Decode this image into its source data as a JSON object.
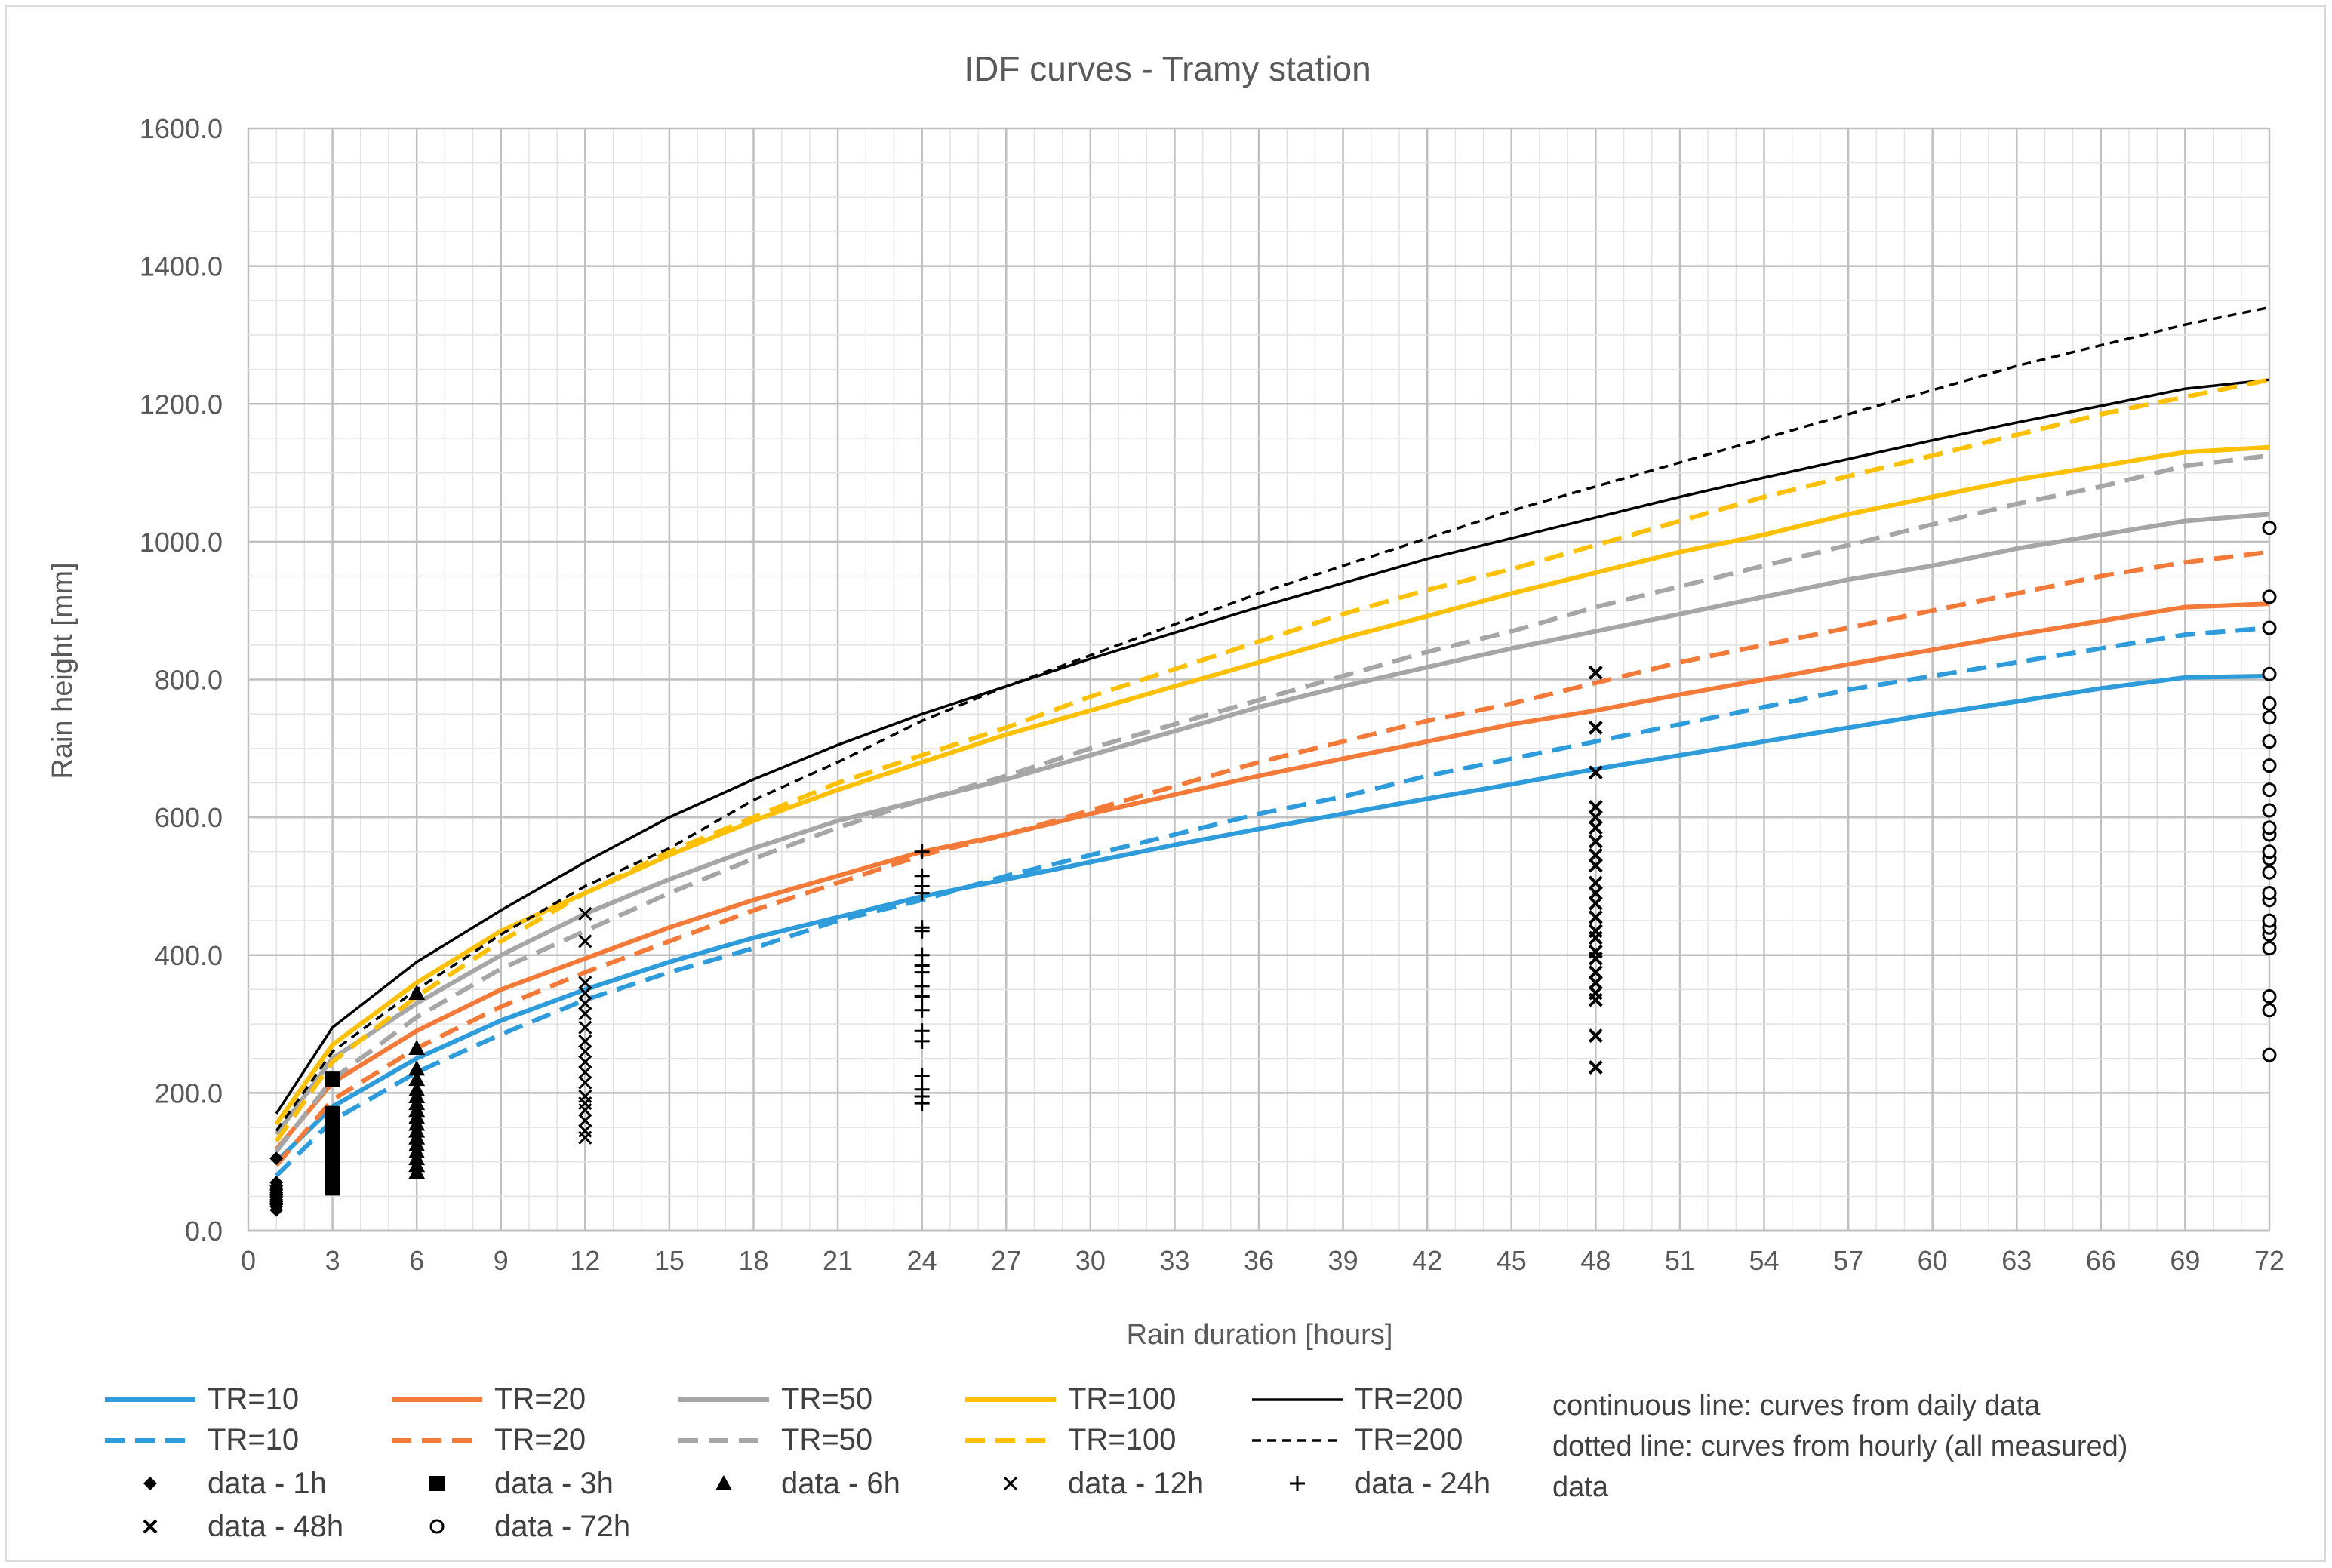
{
  "chart_data": {
    "type": "line",
    "title": "IDF curves - Tramy station",
    "xlabel": "Rain duration [hours]",
    "ylabel": "Rain height [mm]",
    "xlim": [
      0,
      72
    ],
    "ylim": [
      0,
      1600
    ],
    "x_ticks": [
      0,
      3,
      6,
      9,
      12,
      15,
      18,
      21,
      24,
      27,
      30,
      33,
      36,
      39,
      42,
      45,
      48,
      51,
      54,
      57,
      60,
      63,
      66,
      69,
      72
    ],
    "y_ticks": [
      0,
      200,
      400,
      600,
      800,
      1000,
      1200,
      1400,
      1600
    ],
    "y_tick_labels": [
      "0.0",
      "200.0",
      "400.0",
      "600.0",
      "800.0",
      "1000.0",
      "1200.0",
      "1400.0",
      "1600.0"
    ],
    "grid": true,
    "curve_x": [
      1,
      3,
      6,
      9,
      12,
      15,
      18,
      21,
      24,
      27,
      30,
      33,
      36,
      39,
      42,
      45,
      48,
      51,
      54,
      57,
      60,
      63,
      66,
      69,
      72
    ],
    "series": [
      {
        "name": "TR=10",
        "style": "solid",
        "color": "#2E9BDA",
        "values": [
          100,
          180,
          250,
          305,
          350,
          390,
          425,
          455,
          485,
          510,
          535,
          560,
          583,
          605,
          627,
          648,
          670,
          690,
          710,
          730,
          750,
          768,
          787,
          803,
          805
        ]
      },
      {
        "name": "TR=20",
        "style": "solid",
        "color": "#F47A3A",
        "values": [
          118,
          215,
          290,
          350,
          395,
          440,
          480,
          515,
          550,
          575,
          605,
          633,
          660,
          685,
          710,
          735,
          755,
          778,
          800,
          822,
          843,
          865,
          885,
          905,
          910
        ]
      },
      {
        "name": "TR=50",
        "style": "solid",
        "color": "#A6A6A6",
        "values": [
          140,
          250,
          330,
          400,
          460,
          510,
          555,
          595,
          625,
          655,
          690,
          725,
          760,
          790,
          818,
          845,
          870,
          895,
          920,
          945,
          965,
          990,
          1010,
          1030,
          1040
        ]
      },
      {
        "name": "TR=100",
        "style": "solid",
        "color": "#FFC000",
        "values": [
          155,
          270,
          360,
          435,
          490,
          545,
          595,
          640,
          680,
          720,
          755,
          790,
          825,
          860,
          892,
          925,
          955,
          985,
          1010,
          1040,
          1065,
          1090,
          1110,
          1130,
          1137
        ]
      },
      {
        "name": "TR=200",
        "style": "solid",
        "color": "#000000",
        "values": [
          170,
          295,
          390,
          465,
          535,
          600,
          655,
          705,
          750,
          790,
          830,
          868,
          905,
          940,
          975,
          1005,
          1035,
          1065,
          1093,
          1120,
          1147,
          1173,
          1197,
          1222,
          1235
        ]
      },
      {
        "name": "TR=10",
        "style": "dashed",
        "color": "#2E9BDA",
        "values": [
          80,
          160,
          230,
          285,
          335,
          375,
          410,
          450,
          480,
          515,
          545,
          575,
          605,
          630,
          660,
          685,
          710,
          735,
          760,
          785,
          805,
          825,
          845,
          865,
          875
        ]
      },
      {
        "name": "TR=20",
        "style": "dashed",
        "color": "#F47A3A",
        "values": [
          95,
          190,
          265,
          325,
          375,
          420,
          465,
          505,
          545,
          575,
          610,
          645,
          680,
          710,
          740,
          765,
          795,
          825,
          850,
          875,
          900,
          925,
          950,
          970,
          985
        ]
      },
      {
        "name": "TR=50",
        "style": "dashed",
        "color": "#A6A6A6",
        "values": [
          115,
          220,
          310,
          380,
          435,
          490,
          540,
          585,
          625,
          660,
          700,
          735,
          770,
          805,
          840,
          870,
          905,
          935,
          965,
          995,
          1025,
          1055,
          1080,
          1110,
          1125
        ]
      },
      {
        "name": "TR=100",
        "style": "dashed",
        "color": "#FFC000",
        "values": [
          130,
          245,
          340,
          420,
          490,
          550,
          600,
          650,
          690,
          730,
          775,
          815,
          855,
          895,
          930,
          960,
          995,
          1030,
          1065,
          1095,
          1125,
          1155,
          1185,
          1210,
          1235
        ]
      },
      {
        "name": "TR=200",
        "style": "dashed",
        "color": "#000000",
        "values": [
          145,
          260,
          350,
          430,
          500,
          555,
          625,
          680,
          740,
          790,
          835,
          880,
          925,
          965,
          1005,
          1045,
          1080,
          1115,
          1150,
          1185,
          1220,
          1255,
          1285,
          1315,
          1340
        ]
      }
    ],
    "scatter_series": [
      {
        "name": "data - 1h",
        "marker": "diamond",
        "x": 1,
        "values": [
          30,
          35,
          38,
          40,
          42,
          45,
          48,
          50,
          52,
          55,
          58,
          60,
          62,
          65,
          70,
          105
        ]
      },
      {
        "name": "data - 3h",
        "marker": "square",
        "x": 3,
        "values": [
          62,
          70,
          78,
          85,
          90,
          95,
          100,
          105,
          110,
          115,
          120,
          125,
          130,
          135,
          140,
          145,
          150,
          155,
          160,
          165,
          170,
          220
        ]
      },
      {
        "name": "data - 6h",
        "marker": "triangle",
        "x": 6,
        "values": [
          85,
          95,
          105,
          115,
          125,
          135,
          145,
          155,
          165,
          175,
          185,
          195,
          205,
          220,
          235,
          265,
          345
        ]
      },
      {
        "name": "data - 12h",
        "marker": "x",
        "x": 12,
        "values": [
          135,
          145,
          160,
          175,
          185,
          195,
          215,
          230,
          245,
          260,
          275,
          295,
          315,
          330,
          345,
          360,
          420,
          460
        ]
      },
      {
        "name": "data - 24h",
        "marker": "plus",
        "x": 24,
        "values": [
          185,
          195,
          205,
          225,
          275,
          290,
          320,
          340,
          355,
          375,
          385,
          400,
          435,
          440,
          490,
          500,
          515,
          550
        ]
      },
      {
        "name": "data - 48h",
        "marker": "x-bold",
        "x": 48,
        "values": [
          237,
          283,
          335,
          345,
          360,
          375,
          395,
          405,
          425,
          435,
          455,
          475,
          490,
          505,
          530,
          545,
          565,
          585,
          600,
          615,
          665,
          730,
          810
        ]
      },
      {
        "name": "data - 72h",
        "marker": "circle",
        "x": 72,
        "values": [
          255,
          320,
          340,
          410,
          430,
          440,
          450,
          480,
          490,
          520,
          540,
          550,
          575,
          585,
          610,
          640,
          675,
          710,
          745,
          765,
          808,
          875,
          920,
          1020
        ]
      }
    ],
    "legend_position": "bottom",
    "notes": [
      "continuous line: curves from daily data",
      "dotted line: curves from hourly (all measured)",
      "data"
    ]
  }
}
